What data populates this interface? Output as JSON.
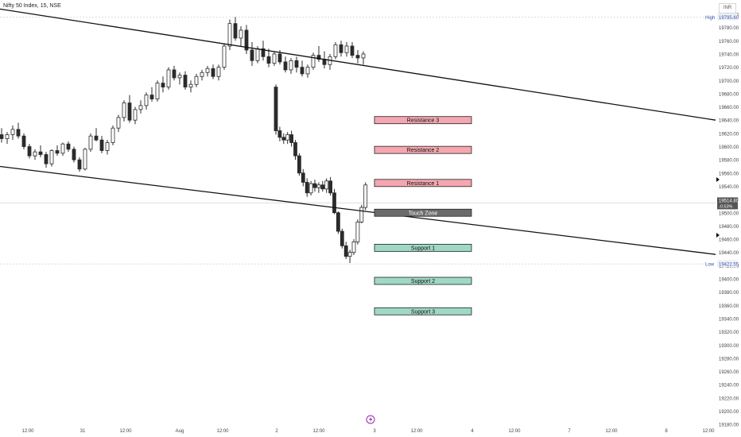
{
  "header": {
    "symbol_title": "Nifty 50 Index, 15, NSE",
    "currency": "INR"
  },
  "price_axis": {
    "ticks": [
      "19800.00",
      "19780.00",
      "19760.00",
      "19740.00",
      "19720.00",
      "19700.00",
      "19680.00",
      "19660.00",
      "19640.00",
      "19620.00",
      "19600.00",
      "19580.00",
      "19560.00",
      "19540.00",
      "19520.00",
      "19500.00",
      "19480.00",
      "19460.00",
      "19440.00",
      "19420.00",
      "19400.00",
      "19380.00",
      "19360.00",
      "19340.00",
      "19320.00",
      "19300.00",
      "19280.00",
      "19260.00",
      "19240.00",
      "19220.00",
      "19200.00",
      "19180.00"
    ],
    "high_label": "High",
    "high_value": "19795.60",
    "low_label": "Low",
    "low_value": "19422.55",
    "last_price": "19514.80",
    "last_change": "-0.53%"
  },
  "time_axis": {
    "ticks": [
      "12:00",
      "31",
      "12:00",
      "Aug",
      "12:00",
      "2",
      "12:00",
      "3",
      "12:00",
      "4",
      "12:00",
      "7",
      "12:00",
      "8",
      "12:00"
    ]
  },
  "zones": [
    {
      "label": "Resistance 3",
      "price": 19640,
      "kind": "resistance"
    },
    {
      "label": "Resistance 2",
      "price": 19595,
      "kind": "resistance"
    },
    {
      "label": "Resistance 1",
      "price": 19545,
      "kind": "resistance"
    },
    {
      "label": "Touch Zone",
      "price": 19500,
      "kind": "touch"
    },
    {
      "label": "Support 1",
      "price": 19447,
      "kind": "support"
    },
    {
      "label": "Support 2",
      "price": 19397,
      "kind": "support"
    },
    {
      "label": "Support 3",
      "price": 19351,
      "kind": "support"
    }
  ],
  "colors": {
    "resistance_fill": "#f4a7b0",
    "support_fill": "#9fd8c6",
    "touch_fill": "#6b6b6b",
    "candle": "#2b2b2b",
    "trendline": "#111111",
    "accent": "#9c27b0"
  },
  "chart_data": {
    "type": "candlestick",
    "title": "Nifty 50 Index, 15, NSE",
    "ylim": [
      19180,
      19810
    ],
    "trendlines": [
      {
        "name": "upper",
        "from": {
          "candle": 0,
          "price": 19808
        },
        "to": {
          "candle": 127,
          "price": 19640
        }
      },
      {
        "name": "lower",
        "from": {
          "candle": 0,
          "price": 19570
        },
        "to": {
          "candle": 127,
          "price": 19437
        }
      }
    ],
    "candles": [
      [
        19618,
        19628,
        19606,
        19612
      ],
      [
        19612,
        19622,
        19604,
        19618
      ],
      [
        19618,
        19632,
        19610,
        19626
      ],
      [
        19626,
        19636,
        19612,
        19616
      ],
      [
        19616,
        19620,
        19596,
        19600
      ],
      [
        19600,
        19604,
        19582,
        19586
      ],
      [
        19586,
        19596,
        19580,
        19592
      ],
      [
        19592,
        19602,
        19584,
        19588
      ],
      [
        19588,
        19592,
        19568,
        19574
      ],
      [
        19574,
        19596,
        19570,
        19594
      ],
      [
        19594,
        19602,
        19586,
        19590
      ],
      [
        19590,
        19606,
        19586,
        19604
      ],
      [
        19604,
        19608,
        19592,
        19596
      ],
      [
        19596,
        19600,
        19576,
        19580
      ],
      [
        19580,
        19584,
        19562,
        19566
      ],
      [
        19566,
        19598,
        19564,
        19596
      ],
      [
        19596,
        19620,
        19592,
        19616
      ],
      [
        19616,
        19628,
        19608,
        19610
      ],
      [
        19610,
        19616,
        19590,
        19594
      ],
      [
        19594,
        19610,
        19588,
        19606
      ],
      [
        19606,
        19632,
        19602,
        19628
      ],
      [
        19628,
        19648,
        19622,
        19644
      ],
      [
        19644,
        19670,
        19638,
        19666
      ],
      [
        19666,
        19678,
        19636,
        19640
      ],
      [
        19640,
        19660,
        19634,
        19656
      ],
      [
        19656,
        19670,
        19650,
        19662
      ],
      [
        19662,
        19682,
        19656,
        19678
      ],
      [
        19678,
        19690,
        19668,
        19672
      ],
      [
        19672,
        19700,
        19668,
        19696
      ],
      [
        19696,
        19706,
        19682,
        19690
      ],
      [
        19690,
        19720,
        19686,
        19716
      ],
      [
        19716,
        19722,
        19700,
        19704
      ],
      [
        19704,
        19712,
        19694,
        19708
      ],
      [
        19708,
        19714,
        19686,
        19690
      ],
      [
        19690,
        19700,
        19682,
        19694
      ],
      [
        19694,
        19710,
        19690,
        19706
      ],
      [
        19706,
        19716,
        19700,
        19712
      ],
      [
        19712,
        19722,
        19706,
        19718
      ],
      [
        19718,
        19724,
        19702,
        19706
      ],
      [
        19706,
        19724,
        19700,
        19720
      ],
      [
        19720,
        19756,
        19716,
        19752
      ],
      [
        19752,
        19792,
        19746,
        19786
      ],
      [
        19786,
        19796,
        19760,
        19764
      ],
      [
        19764,
        19782,
        19752,
        19776
      ],
      [
        19776,
        19784,
        19740,
        19746
      ],
      [
        19746,
        19758,
        19722,
        19730
      ],
      [
        19730,
        19752,
        19726,
        19748
      ],
      [
        19748,
        19760,
        19730,
        19736
      ],
      [
        19736,
        19748,
        19720,
        19726
      ],
      [
        19726,
        19744,
        19722,
        19740
      ],
      [
        19740,
        19746,
        19724,
        19728
      ],
      [
        19728,
        19736,
        19712,
        19716
      ],
      [
        19716,
        19734,
        19710,
        19730
      ],
      [
        19730,
        19736,
        19712,
        19720
      ],
      [
        19720,
        19730,
        19706,
        19710
      ],
      [
        19710,
        19724,
        19704,
        19720
      ],
      [
        19720,
        19742,
        19716,
        19738
      ],
      [
        19738,
        19752,
        19728,
        19732
      ],
      [
        19732,
        19744,
        19718,
        19724
      ],
      [
        19724,
        19740,
        19716,
        19736
      ],
      [
        19736,
        19758,
        19732,
        19754
      ],
      [
        19754,
        19760,
        19736,
        19742
      ],
      [
        19742,
        19758,
        19736,
        19752
      ],
      [
        19752,
        19758,
        19734,
        19738
      ],
      [
        19738,
        19746,
        19726,
        19734
      ],
      [
        19734,
        19744,
        19724,
        19740
      ],
      [
        19690,
        19694,
        19618,
        19624
      ],
      [
        19624,
        19630,
        19608,
        19614
      ],
      [
        19614,
        19620,
        19604,
        19610
      ],
      [
        19610,
        19622,
        19604,
        19618
      ],
      [
        19618,
        19624,
        19600,
        19606
      ],
      [
        19606,
        19610,
        19580,
        19586
      ],
      [
        19586,
        19590,
        19556,
        19560
      ],
      [
        19560,
        19566,
        19540,
        19546
      ],
      [
        19546,
        19552,
        19524,
        19530
      ],
      [
        19530,
        19548,
        19526,
        19544
      ],
      [
        19544,
        19550,
        19532,
        19538
      ],
      [
        19538,
        19546,
        19530,
        19542
      ],
      [
        19542,
        19548,
        19532,
        19536
      ],
      [
        19536,
        19552,
        19530,
        19548
      ],
      [
        19548,
        19554,
        19526,
        19530
      ],
      [
        19530,
        19536,
        19498,
        19500
      ],
      [
        19500,
        19502,
        19468,
        19472
      ],
      [
        19472,
        19476,
        19446,
        19450
      ],
      [
        19450,
        19456,
        19430,
        19434
      ],
      [
        19434,
        19444,
        19424,
        19440
      ],
      [
        19440,
        19460,
        19436,
        19456
      ],
      [
        19456,
        19490,
        19452,
        19486
      ],
      [
        19486,
        19512,
        19484,
        19508
      ],
      [
        19508,
        19546,
        19504,
        19542
      ]
    ]
  }
}
